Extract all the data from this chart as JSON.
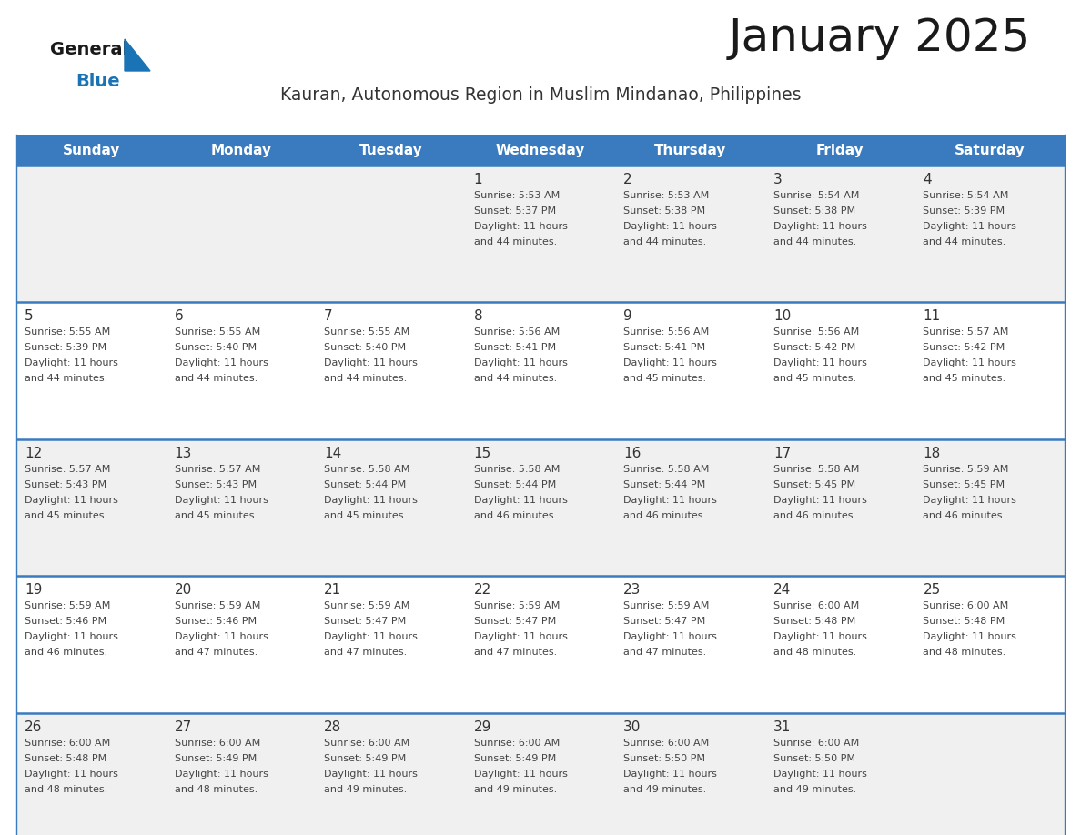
{
  "title": "January 2025",
  "subtitle": "Kauran, Autonomous Region in Muslim Mindanao, Philippines",
  "header_bg_color": "#3a7bbf",
  "header_text_color": "#ffffff",
  "header_days": [
    "Sunday",
    "Monday",
    "Tuesday",
    "Wednesday",
    "Thursday",
    "Friday",
    "Saturday"
  ],
  "row_bg_even": "#f0f0f0",
  "row_bg_odd": "#ffffff",
  "divider_color": "#3a7bbf",
  "day_number_color": "#333333",
  "day_text_color": "#444444",
  "title_color": "#1a1a1a",
  "subtitle_color": "#333333",
  "logo_black_color": "#1a1a1a",
  "logo_blue_color": "#1a73b5",
  "calendar": [
    [
      {
        "day": "",
        "sunrise": "",
        "sunset": "",
        "daylight_h": "",
        "daylight_m": ""
      },
      {
        "day": "",
        "sunrise": "",
        "sunset": "",
        "daylight_h": "",
        "daylight_m": ""
      },
      {
        "day": "",
        "sunrise": "",
        "sunset": "",
        "daylight_h": "",
        "daylight_m": ""
      },
      {
        "day": "1",
        "sunrise": "5:53 AM",
        "sunset": "5:37 PM",
        "daylight_h": "11",
        "daylight_m": "44"
      },
      {
        "day": "2",
        "sunrise": "5:53 AM",
        "sunset": "5:38 PM",
        "daylight_h": "11",
        "daylight_m": "44"
      },
      {
        "day": "3",
        "sunrise": "5:54 AM",
        "sunset": "5:38 PM",
        "daylight_h": "11",
        "daylight_m": "44"
      },
      {
        "day": "4",
        "sunrise": "5:54 AM",
        "sunset": "5:39 PM",
        "daylight_h": "11",
        "daylight_m": "44"
      }
    ],
    [
      {
        "day": "5",
        "sunrise": "5:55 AM",
        "sunset": "5:39 PM",
        "daylight_h": "11",
        "daylight_m": "44"
      },
      {
        "day": "6",
        "sunrise": "5:55 AM",
        "sunset": "5:40 PM",
        "daylight_h": "11",
        "daylight_m": "44"
      },
      {
        "day": "7",
        "sunrise": "5:55 AM",
        "sunset": "5:40 PM",
        "daylight_h": "11",
        "daylight_m": "44"
      },
      {
        "day": "8",
        "sunrise": "5:56 AM",
        "sunset": "5:41 PM",
        "daylight_h": "11",
        "daylight_m": "44"
      },
      {
        "day": "9",
        "sunrise": "5:56 AM",
        "sunset": "5:41 PM",
        "daylight_h": "11",
        "daylight_m": "45"
      },
      {
        "day": "10",
        "sunrise": "5:56 AM",
        "sunset": "5:42 PM",
        "daylight_h": "11",
        "daylight_m": "45"
      },
      {
        "day": "11",
        "sunrise": "5:57 AM",
        "sunset": "5:42 PM",
        "daylight_h": "11",
        "daylight_m": "45"
      }
    ],
    [
      {
        "day": "12",
        "sunrise": "5:57 AM",
        "sunset": "5:43 PM",
        "daylight_h": "11",
        "daylight_m": "45"
      },
      {
        "day": "13",
        "sunrise": "5:57 AM",
        "sunset": "5:43 PM",
        "daylight_h": "11",
        "daylight_m": "45"
      },
      {
        "day": "14",
        "sunrise": "5:58 AM",
        "sunset": "5:44 PM",
        "daylight_h": "11",
        "daylight_m": "45"
      },
      {
        "day": "15",
        "sunrise": "5:58 AM",
        "sunset": "5:44 PM",
        "daylight_h": "11",
        "daylight_m": "46"
      },
      {
        "day": "16",
        "sunrise": "5:58 AM",
        "sunset": "5:44 PM",
        "daylight_h": "11",
        "daylight_m": "46"
      },
      {
        "day": "17",
        "sunrise": "5:58 AM",
        "sunset": "5:45 PM",
        "daylight_h": "11",
        "daylight_m": "46"
      },
      {
        "day": "18",
        "sunrise": "5:59 AM",
        "sunset": "5:45 PM",
        "daylight_h": "11",
        "daylight_m": "46"
      }
    ],
    [
      {
        "day": "19",
        "sunrise": "5:59 AM",
        "sunset": "5:46 PM",
        "daylight_h": "11",
        "daylight_m": "46"
      },
      {
        "day": "20",
        "sunrise": "5:59 AM",
        "sunset": "5:46 PM",
        "daylight_h": "11",
        "daylight_m": "47"
      },
      {
        "day": "21",
        "sunrise": "5:59 AM",
        "sunset": "5:47 PM",
        "daylight_h": "11",
        "daylight_m": "47"
      },
      {
        "day": "22",
        "sunrise": "5:59 AM",
        "sunset": "5:47 PM",
        "daylight_h": "11",
        "daylight_m": "47"
      },
      {
        "day": "23",
        "sunrise": "5:59 AM",
        "sunset": "5:47 PM",
        "daylight_h": "11",
        "daylight_m": "47"
      },
      {
        "day": "24",
        "sunrise": "6:00 AM",
        "sunset": "5:48 PM",
        "daylight_h": "11",
        "daylight_m": "48"
      },
      {
        "day": "25",
        "sunrise": "6:00 AM",
        "sunset": "5:48 PM",
        "daylight_h": "11",
        "daylight_m": "48"
      }
    ],
    [
      {
        "day": "26",
        "sunrise": "6:00 AM",
        "sunset": "5:48 PM",
        "daylight_h": "11",
        "daylight_m": "48"
      },
      {
        "day": "27",
        "sunrise": "6:00 AM",
        "sunset": "5:49 PM",
        "daylight_h": "11",
        "daylight_m": "48"
      },
      {
        "day": "28",
        "sunrise": "6:00 AM",
        "sunset": "5:49 PM",
        "daylight_h": "11",
        "daylight_m": "49"
      },
      {
        "day": "29",
        "sunrise": "6:00 AM",
        "sunset": "5:49 PM",
        "daylight_h": "11",
        "daylight_m": "49"
      },
      {
        "day": "30",
        "sunrise": "6:00 AM",
        "sunset": "5:50 PM",
        "daylight_h": "11",
        "daylight_m": "49"
      },
      {
        "day": "31",
        "sunrise": "6:00 AM",
        "sunset": "5:50 PM",
        "daylight_h": "11",
        "daylight_m": "49"
      },
      {
        "day": "",
        "sunrise": "",
        "sunset": "",
        "daylight_h": "",
        "daylight_m": ""
      }
    ]
  ]
}
